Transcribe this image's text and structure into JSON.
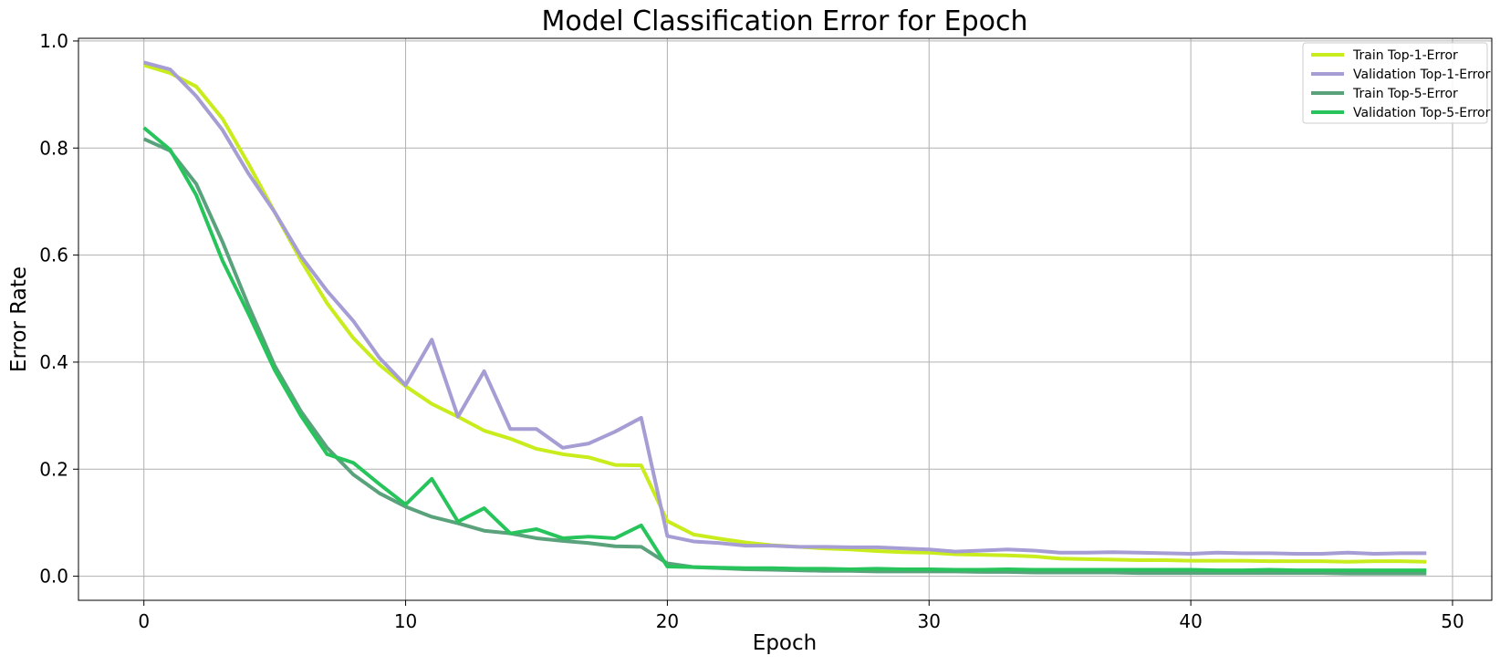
{
  "chart_data": {
    "type": "line",
    "title": "Model Classification Error for Epoch",
    "xlabel": "Epoch",
    "ylabel": "Error Rate",
    "xlim": [
      -2.5,
      51.5
    ],
    "ylim": [
      -0.045,
      1.005
    ],
    "xticks": [
      0,
      10,
      20,
      30,
      40,
      50
    ],
    "xtick_labels": [
      "0",
      "10",
      "20",
      "30",
      "40",
      "50"
    ],
    "yticks": [
      0.0,
      0.2,
      0.4,
      0.6,
      0.8,
      1.0
    ],
    "ytick_labels": [
      "0.0",
      "0.2",
      "0.4",
      "0.6",
      "0.8",
      "1.0"
    ],
    "grid": true,
    "legend_position": "top-right",
    "x": [
      0,
      1,
      2,
      3,
      4,
      5,
      6,
      7,
      8,
      9,
      10,
      11,
      12,
      13,
      14,
      15,
      16,
      17,
      18,
      19,
      20,
      21,
      22,
      23,
      24,
      25,
      26,
      27,
      28,
      29,
      30,
      31,
      32,
      33,
      34,
      35,
      36,
      37,
      38,
      39,
      40,
      41,
      42,
      43,
      44,
      45,
      46,
      47,
      48,
      49
    ],
    "series": [
      {
        "name": "Train Top-1-Error",
        "color": "#c8ec1c",
        "values": [
          0.955,
          0.94,
          0.915,
          0.855,
          0.77,
          0.68,
          0.59,
          0.51,
          0.445,
          0.395,
          0.355,
          0.322,
          0.298,
          0.272,
          0.257,
          0.238,
          0.228,
          0.222,
          0.208,
          0.207,
          0.103,
          0.078,
          0.07,
          0.063,
          0.058,
          0.055,
          0.052,
          0.05,
          0.047,
          0.045,
          0.044,
          0.041,
          0.04,
          0.039,
          0.037,
          0.033,
          0.032,
          0.031,
          0.03,
          0.03,
          0.029,
          0.029,
          0.029,
          0.028,
          0.028,
          0.028,
          0.027,
          0.028,
          0.028,
          0.027
        ]
      },
      {
        "name": "Validation Top-1-Error",
        "color": "#a59dd3",
        "values": [
          0.96,
          0.947,
          0.897,
          0.834,
          0.752,
          0.68,
          0.598,
          0.533,
          0.477,
          0.408,
          0.357,
          0.442,
          0.298,
          0.383,
          0.275,
          0.275,
          0.24,
          0.248,
          0.27,
          0.296,
          0.075,
          0.065,
          0.062,
          0.057,
          0.057,
          0.055,
          0.055,
          0.054,
          0.054,
          0.052,
          0.05,
          0.046,
          0.048,
          0.05,
          0.048,
          0.044,
          0.044,
          0.045,
          0.044,
          0.043,
          0.042,
          0.044,
          0.043,
          0.043,
          0.042,
          0.042,
          0.044,
          0.042,
          0.043,
          0.043
        ]
      },
      {
        "name": "Train Top-5-Error",
        "color": "#5aa27c",
        "values": [
          0.817,
          0.795,
          0.733,
          0.625,
          0.505,
          0.393,
          0.308,
          0.24,
          0.19,
          0.155,
          0.13,
          0.111,
          0.099,
          0.085,
          0.08,
          0.071,
          0.066,
          0.062,
          0.056,
          0.055,
          0.024,
          0.017,
          0.015,
          0.013,
          0.012,
          0.011,
          0.01,
          0.01,
          0.009,
          0.009,
          0.009,
          0.009,
          0.008,
          0.008,
          0.007,
          0.007,
          0.007,
          0.007,
          0.006,
          0.006,
          0.006,
          0.006,
          0.006,
          0.006,
          0.006,
          0.006,
          0.005,
          0.005,
          0.005,
          0.005
        ]
      },
      {
        "name": "Validation Top-5-Error",
        "color": "#27c45c",
        "values": [
          0.838,
          0.797,
          0.712,
          0.59,
          0.49,
          0.385,
          0.3,
          0.228,
          0.212,
          0.172,
          0.134,
          0.182,
          0.102,
          0.127,
          0.08,
          0.088,
          0.071,
          0.074,
          0.071,
          0.095,
          0.018,
          0.017,
          0.016,
          0.015,
          0.015,
          0.014,
          0.014,
          0.013,
          0.014,
          0.013,
          0.013,
          0.012,
          0.012,
          0.013,
          0.012,
          0.012,
          0.012,
          0.012,
          0.012,
          0.012,
          0.012,
          0.011,
          0.011,
          0.012,
          0.011,
          0.011,
          0.011,
          0.011,
          0.011,
          0.011
        ]
      }
    ]
  }
}
